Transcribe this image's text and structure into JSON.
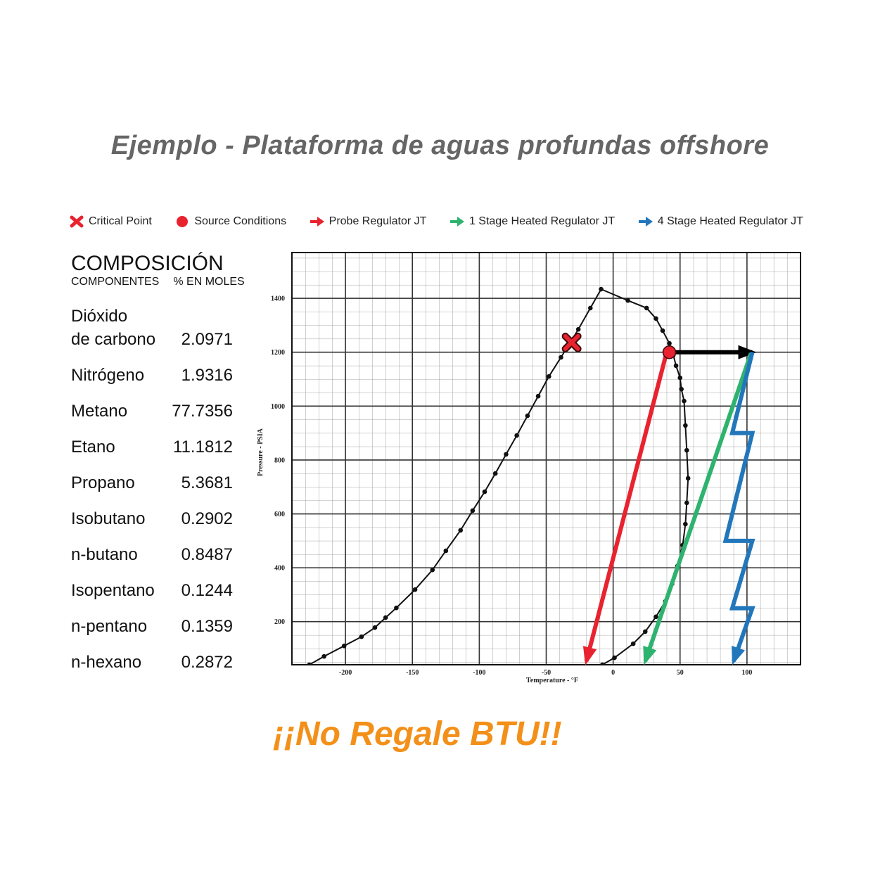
{
  "title": "Ejemplo - Plataforma de aguas profundas offshore",
  "slogan": "¡¡No Regale BTU!!",
  "composition": {
    "title": "COMPOSICIÓN",
    "headers": [
      "COMPONENTES",
      "% EN MOLES"
    ],
    "rows": [
      [
        "Dióxido\nde carbono",
        2.0971
      ],
      [
        "Nitrógeno",
        1.9316
      ],
      [
        "Metano",
        77.7356
      ],
      [
        "Etano",
        11.1812
      ],
      [
        "Propano",
        5.3681
      ],
      [
        "Isobutano",
        0.2902
      ],
      [
        "n-butano",
        0.8487
      ],
      [
        "Isopentano",
        0.1244
      ],
      [
        "n-pentano",
        0.1359
      ],
      [
        "n-hexano",
        0.2872
      ]
    ]
  },
  "chart_data": {
    "type": "line",
    "x_label": "Temperature - °F",
    "y_label": "Pressure - PSIA",
    "xlim": [
      -240,
      140
    ],
    "ylim": [
      40,
      1570
    ],
    "xticks": [
      -200,
      -150,
      -100,
      -50,
      0,
      50,
      100
    ],
    "yticks": [
      200,
      400,
      600,
      800,
      1000,
      1200,
      1400
    ],
    "grid": true,
    "legend": "top",
    "series": [
      {
        "type": "line",
        "color": "#111111",
        "x": [
          -227,
          -216,
          -201,
          -188,
          -178,
          -170,
          -162,
          -148,
          -135,
          -125,
          -114,
          -105,
          -96,
          -88,
          -80,
          -72,
          -64,
          -56,
          -48,
          -39,
          -31,
          -26,
          -17,
          -9,
          11,
          25,
          32,
          37,
          42,
          45,
          47,
          50,
          51,
          53,
          54,
          55,
          56,
          55,
          54,
          52,
          48,
          44,
          39,
          32,
          24,
          15,
          1,
          -8
        ],
        "values": [
          40,
          71,
          110,
          144,
          178,
          215,
          251,
          319,
          392,
          463,
          539,
          612,
          682,
          750,
          821,
          891,
          964,
          1037,
          1110,
          1181,
          1244,
          1285,
          1364,
          1434,
          1392,
          1364,
          1325,
          1280,
          1233,
          1189,
          1150,
          1105,
          1063,
          1019,
          928,
          836,
          732,
          641,
          562,
          484,
          406,
          340,
          275,
          218,
          163,
          118,
          66,
          40
        ]
      },
      {
        "name": "Critical Point",
        "type": "cross",
        "color": "#e8232f",
        "x": [
          -31
        ],
        "values": [
          1236
        ]
      },
      {
        "name": "Source Conditions",
        "type": "dot",
        "color": "#e8232f",
        "x": [
          42
        ],
        "values": [
          1200
        ]
      },
      {
        "type": "arrow",
        "color": "#000000",
        "x": [
          42,
          104
        ],
        "values": [
          1200,
          1200
        ]
      },
      {
        "name": "Probe Regulator JT",
        "type": "arrow",
        "color": "#e8232f",
        "x": [
          40,
          -20
        ],
        "values": [
          1200,
          53
        ]
      },
      {
        "name": "1 Stage Heated Regulator JT",
        "type": "arrow",
        "color": "#2eb36f",
        "x": [
          103,
          24
        ],
        "values": [
          1196,
          53
        ]
      },
      {
        "name": "4 Stage Heated Regulator JT",
        "type": "arrow",
        "color": "#2277bb",
        "x": [
          104,
          89,
          104,
          84,
          104,
          89,
          104,
          90
        ],
        "values": [
          1200,
          900,
          900,
          500,
          500,
          250,
          250,
          53
        ]
      }
    ]
  }
}
